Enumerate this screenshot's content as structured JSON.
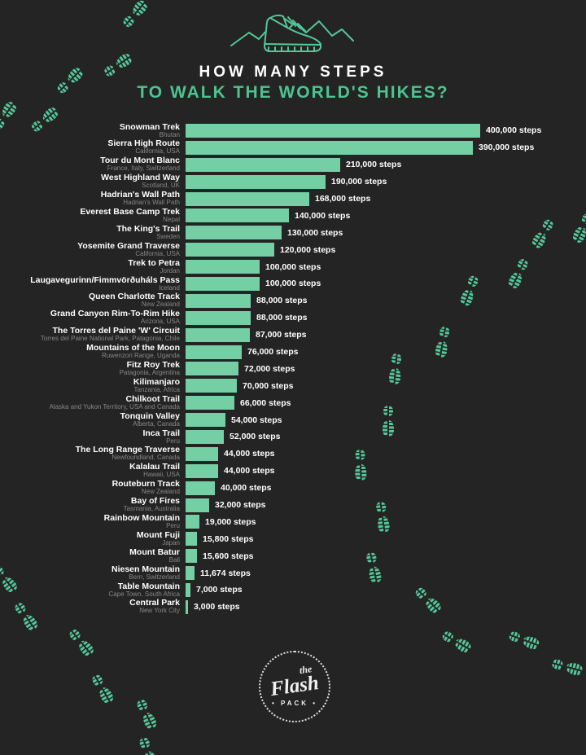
{
  "header": {
    "title_line1": "HOW MANY STEPS",
    "title_line2": "TO WALK THE WORLD'S HIKES?"
  },
  "footer_logo": {
    "word_the": "the",
    "word_flash": "Flash",
    "word_pack": "PACK"
  },
  "colors": {
    "background": "#242424",
    "bar_fill": "#74cfa4",
    "title_accent": "#4cc492",
    "footprint": "#53c79b",
    "text_primary": "#ffffff",
    "text_secondary": "#878787"
  },
  "chart_data": {
    "type": "bar",
    "orientation": "horizontal",
    "title": "How many steps to walk the world's hikes?",
    "unit": "steps",
    "max_value": 400000,
    "grid": false,
    "legend": "none",
    "categories": [
      "Snowman Trek",
      "Sierra High Route",
      "Tour du Mont Blanc",
      "West Highland Way",
      "Hadrian's Wall Path",
      "Everest Base Camp Trek",
      "The King's Trail",
      "Yosemite Grand Traverse",
      "Trek to Petra",
      "Laugavegurinn/Fimmvörðuháls Pass",
      "Queen Charlotte Track",
      "Grand Canyon Rim-To-Rim Hike",
      "The Torres del Paine 'W' Circuit",
      "Mountains of the Moon",
      "Fitz Roy Trek",
      "Kilimanjaro",
      "Chilkoot Trail",
      "Tonquin Valley",
      "Inca Trail",
      "The Long Range Traverse",
      "Kalalau Trail",
      "Routeburn Track",
      "Bay of Fires",
      "Rainbow Mountain",
      "Mount Fuji",
      "Mount Batur",
      "Niesen Mountain",
      "Table Mountain",
      "Central Park"
    ],
    "locations": [
      "Bhutan",
      "California, USA",
      "France, Italy, Switzerland",
      "Scotland, UK",
      "Hadrian's Wall Path",
      "Nepal",
      "Sweden",
      "California, USA",
      "Jordan",
      "Iceland",
      "New Zealand",
      "Arizona, USA",
      "Torres del Paine National Park, Patagonia, Chile",
      "Ruwenzori Range, Uganda",
      "Patagonia, Argentina",
      "Tanzania, Africa",
      "Alaska and Yukon Territory, USA and Canada",
      "Alberta, Canada",
      "Peru",
      "Newfoundland, Canada",
      "Hawaii, USA",
      "New Zealand",
      "Tasmania, Australia",
      "Peru",
      "Japan",
      "Bali",
      "Bern, Switzerland",
      "Cape Town, South Africa",
      "New York City"
    ],
    "values": [
      400000,
      390000,
      210000,
      190000,
      168000,
      140000,
      130000,
      120000,
      100000,
      100000,
      88000,
      88000,
      87000,
      76000,
      72000,
      70000,
      66000,
      54000,
      52000,
      44000,
      44000,
      40000,
      32000,
      19000,
      15800,
      15600,
      11674,
      7000,
      3000
    ],
    "value_labels": [
      "400,000 steps",
      "390,000 steps",
      "210,000 steps",
      "190,000 steps",
      "168,000 steps",
      "140,000 steps",
      "130,000 steps",
      "120,000 steps",
      "100,000 steps",
      "100,000 steps",
      "88,000 steps",
      "88,000 steps",
      "87,000 steps",
      "76,000 steps",
      "72,000 steps",
      "70,000 steps",
      "66,000 steps",
      "54,000 steps",
      "52,000 steps",
      "44,000 steps",
      "44,000 steps",
      "40,000 steps",
      "32,000 steps",
      "19,000 steps",
      "15,800 steps",
      "15,600 steps",
      "11,674 steps",
      "7,000 steps",
      "3,000 steps"
    ]
  }
}
